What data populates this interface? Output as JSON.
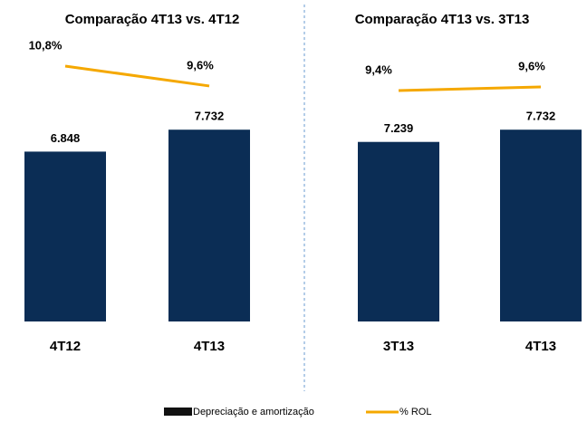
{
  "chart_data": [
    {
      "type": "bar",
      "title": "Comparação 4T13 vs. 4T12",
      "categories": [
        "4T12",
        "4T13"
      ],
      "ylim": [
        0,
        11500
      ],
      "y2lim": [
        -4.6,
        12.6
      ],
      "series": [
        {
          "name": "Depreciação e amortização",
          "type": "bar",
          "color": "#0b2d55",
          "values": [
            6848,
            7732
          ],
          "value_labels": [
            "6.848",
            "7.732"
          ]
        },
        {
          "name": "% ROL",
          "type": "line",
          "axis": "y2",
          "color": "#f5a800",
          "values": [
            10.8,
            9.6
          ],
          "value_labels": [
            "10,8%",
            "9,6%"
          ]
        }
      ]
    },
    {
      "type": "bar",
      "title": "Comparação 4T13 vs. 3T13",
      "categories": [
        "3T13",
        "4T13"
      ],
      "ylim": [
        0,
        11500
      ],
      "y2lim": [
        -3.35,
        12.4
      ],
      "series": [
        {
          "name": "Depreciação e amortização",
          "type": "bar",
          "color": "#0b2d55",
          "values": [
            7239,
            7732
          ],
          "value_labels": [
            "7.239",
            "7.732"
          ]
        },
        {
          "name": "% ROL",
          "type": "line",
          "axis": "y2",
          "color": "#f5a800",
          "values": [
            9.4,
            9.6
          ],
          "value_labels": [
            "9,4%",
            "9,6%"
          ]
        }
      ]
    }
  ]
}
